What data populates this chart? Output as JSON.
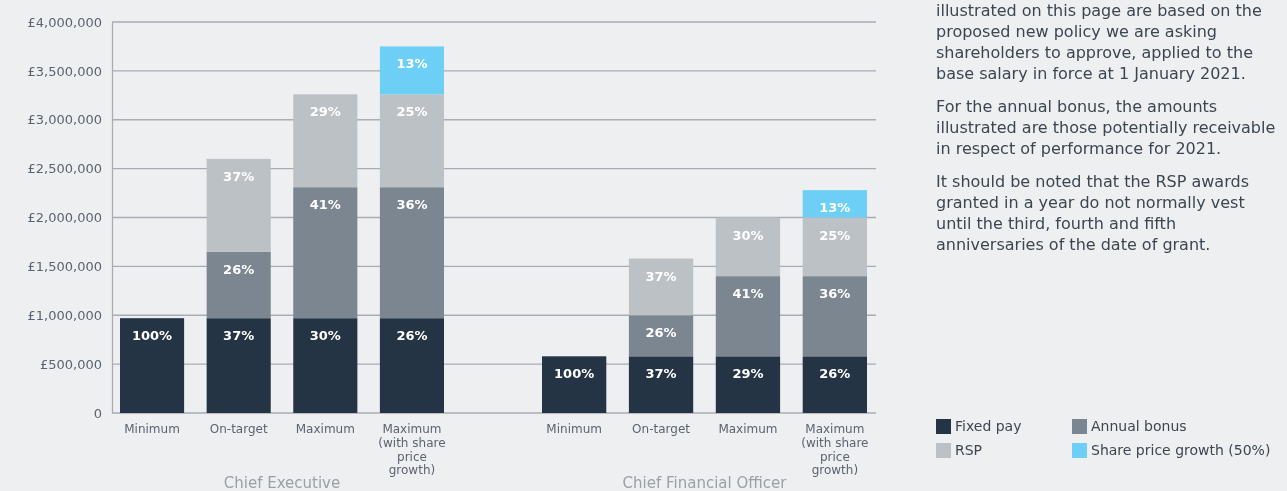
{
  "chart_data": [
    {
      "type": "bar",
      "stacked": true,
      "xlabel": "Chief Executive",
      "categories": [
        "Minimum",
        "On-target",
        "Maximum",
        "Maximum (with share price growth)"
      ],
      "ylim": [
        0,
        4000000
      ],
      "yticks": [
        {
          "value": 0,
          "label": "0"
        },
        {
          "value": 500000,
          "label": "£500,000"
        },
        {
          "value": 1000000,
          "label": "£1,000,000"
        },
        {
          "value": 1500000,
          "label": "£1,500,000"
        },
        {
          "value": 2000000,
          "label": "£2,000,000"
        },
        {
          "value": 2500000,
          "label": "£2,500,000"
        },
        {
          "value": 3000000,
          "label": "£3,000,000"
        },
        {
          "value": 3500000,
          "label": "£3,500,000"
        },
        {
          "value": 4000000,
          "label": "£4,000,000"
        }
      ],
      "grid": "y",
      "legend": "right",
      "annotations": [
        {
          "text": "100%",
          "x": "Minimum",
          "y": 970000
        },
        {
          "text": "37%",
          "x": "On-target",
          "y": 970000
        },
        {
          "text": "26%",
          "x": "On-target",
          "y": 1650000
        },
        {
          "text": "37%",
          "x": "On-target",
          "y": 2600000
        },
        {
          "text": "30%",
          "x": "Maximum",
          "y": 970000
        },
        {
          "text": "41%",
          "x": "Maximum",
          "y": 2310000
        },
        {
          "text": "29%",
          "x": "Maximum",
          "y": 3260000
        },
        {
          "text": "26%",
          "x": "Maximum (with share price growth)",
          "y": 970000
        },
        {
          "text": "36%",
          "x": "Maximum (with share price growth)",
          "y": 2310000
        },
        {
          "text": "25%",
          "x": "Maximum (with share price growth)",
          "y": 3260000
        },
        {
          "text": "13%",
          "x": "Maximum (with share price growth)",
          "y": 3750000
        }
      ],
      "series": [
        {
          "name": "Fixed pay",
          "color": "#243444",
          "values": [
            970000,
            970000,
            970000,
            970000
          ]
        },
        {
          "name": "Annual bonus",
          "color": "#7b8690",
          "values": [
            null,
            680000,
            1340000,
            1340000
          ]
        },
        {
          "name": "RSP",
          "color": "#bcc1c6",
          "values": [
            null,
            950000,
            950000,
            950000
          ]
        },
        {
          "name": "Share price growth (50%)",
          "color": "#6dcff6",
          "values": [
            null,
            null,
            null,
            490000
          ]
        }
      ]
    },
    {
      "type": "bar",
      "stacked": true,
      "xlabel": "Chief Financial Officer",
      "categories": [
        "Minimum",
        "On-target",
        "Maximum",
        "Maximum (with share price growth)"
      ],
      "ylim": [
        0,
        4000000
      ],
      "yticks": [
        0,
        500000,
        1000000,
        1500000,
        2000000,
        2500000,
        3000000,
        3500000,
        4000000
      ],
      "tick_labels": "x",
      "grid": "y",
      "annotations": [
        "illustrated on this page are based on the proposed new policy we are asking shareholders to approve, applied to the base salary in force at 1 January 2021.",
        "For the annual bonus, the amounts illustrated are those potentially receivable in respect of performance for 2021.",
        "It should be noted that the RSP awards granted in a year do not normally vest until the third, fourth and fifth anniversaries of the date of grant.",
        {
          "text": "100%",
          "x": "Minimum",
          "y": 580000
        },
        {
          "text": "37%",
          "x": "On-target",
          "y": 580000
        },
        {
          "text": "26%",
          "x": "On-target",
          "y": 1000000
        },
        {
          "text": "37%",
          "x": "On-target",
          "y": 1580000
        },
        {
          "text": "29%",
          "x": "Maximum",
          "y": 580000
        },
        {
          "text": "41%",
          "x": "Maximum",
          "y": 1400000
        },
        {
          "text": "30%",
          "x": "Maximum",
          "y": 2000000
        },
        {
          "text": "26%",
          "x": "Maximum (with share price growth)",
          "y": 580000
        },
        {
          "text": "36%",
          "x": "Maximum (with share price growth)",
          "y": 1400000
        },
        {
          "text": "25%",
          "x": "Maximum (with share price growth)",
          "y": 2000000
        },
        {
          "text": "13%",
          "x": "Maximum (with share price growth)",
          "y": 2280000
        }
      ],
      "series": [
        {
          "color": "#243444",
          "values": [
            580000,
            580000,
            580000,
            580000
          ]
        },
        {
          "color": "#7b8690",
          "values": [
            null,
            420000,
            820000,
            820000
          ]
        },
        {
          "color": "#bcc1c6",
          "values": [
            null,
            580000,
            600000,
            600000
          ]
        },
        {
          "color": "#6dcff6",
          "values": [
            null,
            null,
            null,
            280000
          ]
        }
      ]
    }
  ]
}
